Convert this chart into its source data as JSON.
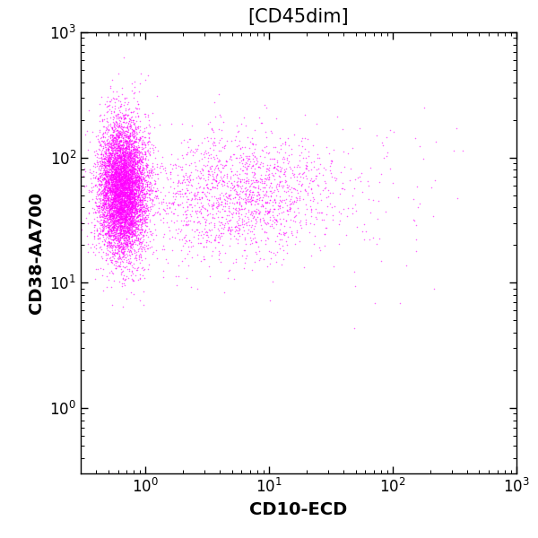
{
  "title": "[CD45dim]",
  "xlabel": "CD10-ECD",
  "ylabel": "CD38-AA700",
  "dot_color": "#FF00FF",
  "dot_alpha": 0.6,
  "dot_size": 1.2,
  "xlim": [
    0.3,
    1000
  ],
  "ylim": [
    0.3,
    1000
  ],
  "background_color": "#ffffff",
  "title_fontsize": 15,
  "label_fontsize": 14,
  "tick_labelsize": 12
}
